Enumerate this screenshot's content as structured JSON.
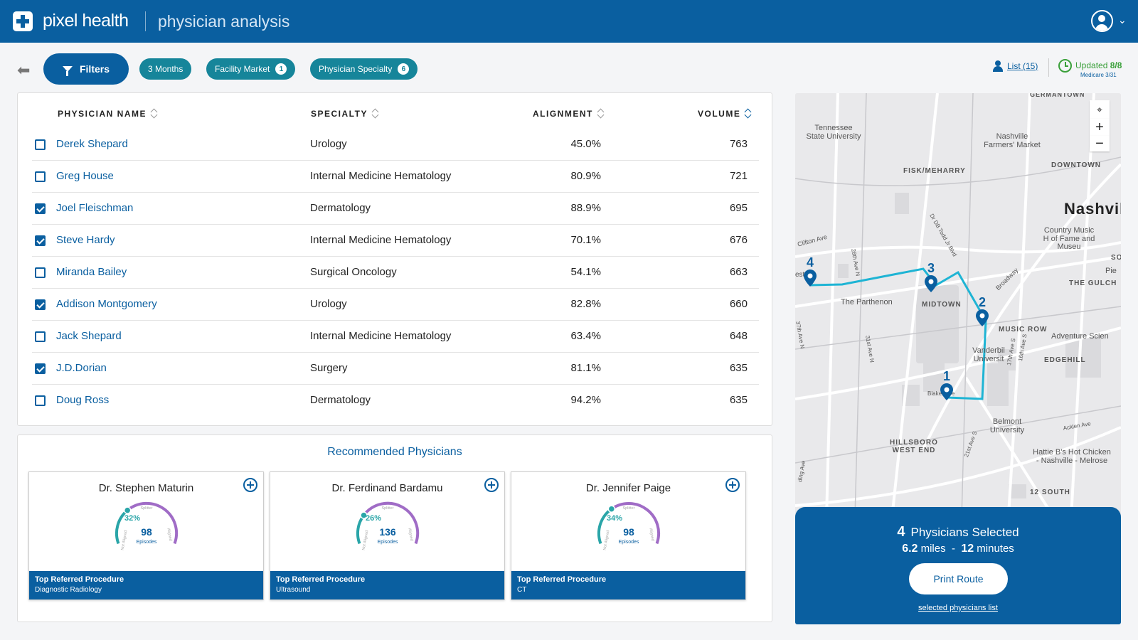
{
  "header": {
    "brand": "pixel health",
    "subtitle": "physician analysis"
  },
  "filters": {
    "filters_label": "Filters",
    "chips": [
      {
        "label": "3 Months",
        "count": ""
      },
      {
        "label": "Facility Market",
        "count": "1"
      },
      {
        "label": "Physician Specialty",
        "count": "6"
      }
    ],
    "list_link": "List (15)",
    "updated_label": "Updated",
    "updated_value": "8/8",
    "medicare": "Medicare 3/31"
  },
  "table": {
    "columns": [
      "PHYSICIAN NAME",
      "SPECIALTY",
      "ALIGNMENT",
      "VOLUME"
    ],
    "rows": [
      {
        "name": "Derek Shepard",
        "specialty": "Urology",
        "alignment": "45.0%",
        "volume": "763",
        "checked": false
      },
      {
        "name": "Greg House",
        "specialty": "Internal Medicine Hematology",
        "alignment": "80.9%",
        "volume": "721",
        "checked": false
      },
      {
        "name": "Joel Fleischman",
        "specialty": "Dermatology",
        "alignment": "88.9%",
        "volume": "695",
        "checked": true
      },
      {
        "name": "Steve Hardy",
        "specialty": "Internal Medicine Hematology",
        "alignment": "70.1%",
        "volume": "676",
        "checked": true
      },
      {
        "name": "Miranda Bailey",
        "specialty": "Surgical Oncology",
        "alignment": "54.1%",
        "volume": "663",
        "checked": false
      },
      {
        "name": "Addison Montgomery",
        "specialty": "Urology",
        "alignment": "82.8%",
        "volume": "660",
        "checked": true
      },
      {
        "name": "Jack Shepard",
        "specialty": "Internal Medicine Hematology",
        "alignment": "63.4%",
        "volume": "648",
        "checked": false
      },
      {
        "name": "J.D.Dorian",
        "specialty": "Surgery",
        "alignment": "81.1%",
        "volume": "635",
        "checked": true
      },
      {
        "name": "Doug Ross",
        "specialty": "Dermatology",
        "alignment": "94.2%",
        "volume": "635",
        "checked": false
      }
    ]
  },
  "recommended": {
    "title": "Recommended Physicians",
    "gauge_labels": {
      "split": "Splitter",
      "not_aligned": "Not Aligned",
      "aligned": "Aligned",
      "episodes": "Episodes"
    },
    "cards": [
      {
        "name": "Dr. Stephen Maturin",
        "percent": "32%",
        "percent_value": 32,
        "episodes": "98",
        "foot_label": "Top Referred Procedure",
        "foot_value": "Diagnostic Radiology"
      },
      {
        "name": "Dr. Ferdinand Bardamu",
        "percent": "26%",
        "percent_value": 26,
        "episodes": "136",
        "foot_label": "Top Referred Procedure",
        "foot_value": "Ultrasound"
      },
      {
        "name": "Dr. Jennifer Paige",
        "percent": "34%",
        "percent_value": 34,
        "episodes": "98",
        "foot_label": "Top Referred Procedure",
        "foot_value": "CT"
      }
    ]
  },
  "map": {
    "labels": [
      "GERMANTOWN",
      "Tennessee State University",
      "Nashville Farmers' Market",
      "FISK/MEHARRY",
      "DOWNTOWN",
      "Nashvil",
      "Country Music H of Fame and Museu",
      "Clifton Ave",
      "28th Ave N",
      "Dr DB Todd Jr Blvd",
      "The Parthenon",
      "MIDTOWN",
      "Broadway",
      "MUSIC ROW",
      "THE GULCH",
      "Adventure Scien",
      "31st Ave N",
      "Vanderbil Universit",
      "EDGEHILL",
      "17th Ave S",
      "16th Ave S",
      "37th Ave N",
      "Blakemore",
      "Belmont University",
      "Acklen Ave",
      "HILLSBORO WEST END",
      "21st Ave S",
      "Hattie B's Hot Chicken - Nashville - Melrose",
      "12 SOUTH",
      "SO",
      "Pie",
      "ding Ave",
      "est"
    ],
    "stops": [
      "1",
      "2",
      "3",
      "4"
    ],
    "zoom_in": "+",
    "zoom_out": "−"
  },
  "summary": {
    "count": "4",
    "count_label": "Physicians Selected",
    "miles": "6.2",
    "miles_label": "miles",
    "sep": "-",
    "minutes": "12",
    "minutes_label": "minutes",
    "print_label": "Print Route",
    "list_link": "selected physicians list"
  },
  "colors": {
    "primary": "#0a5fa0",
    "chip": "#16859a",
    "route": "#1eb4d4",
    "gauge_teal": "#2aa5a8",
    "gauge_purple": "#a06cc6",
    "updated_green": "#3aa03a"
  }
}
